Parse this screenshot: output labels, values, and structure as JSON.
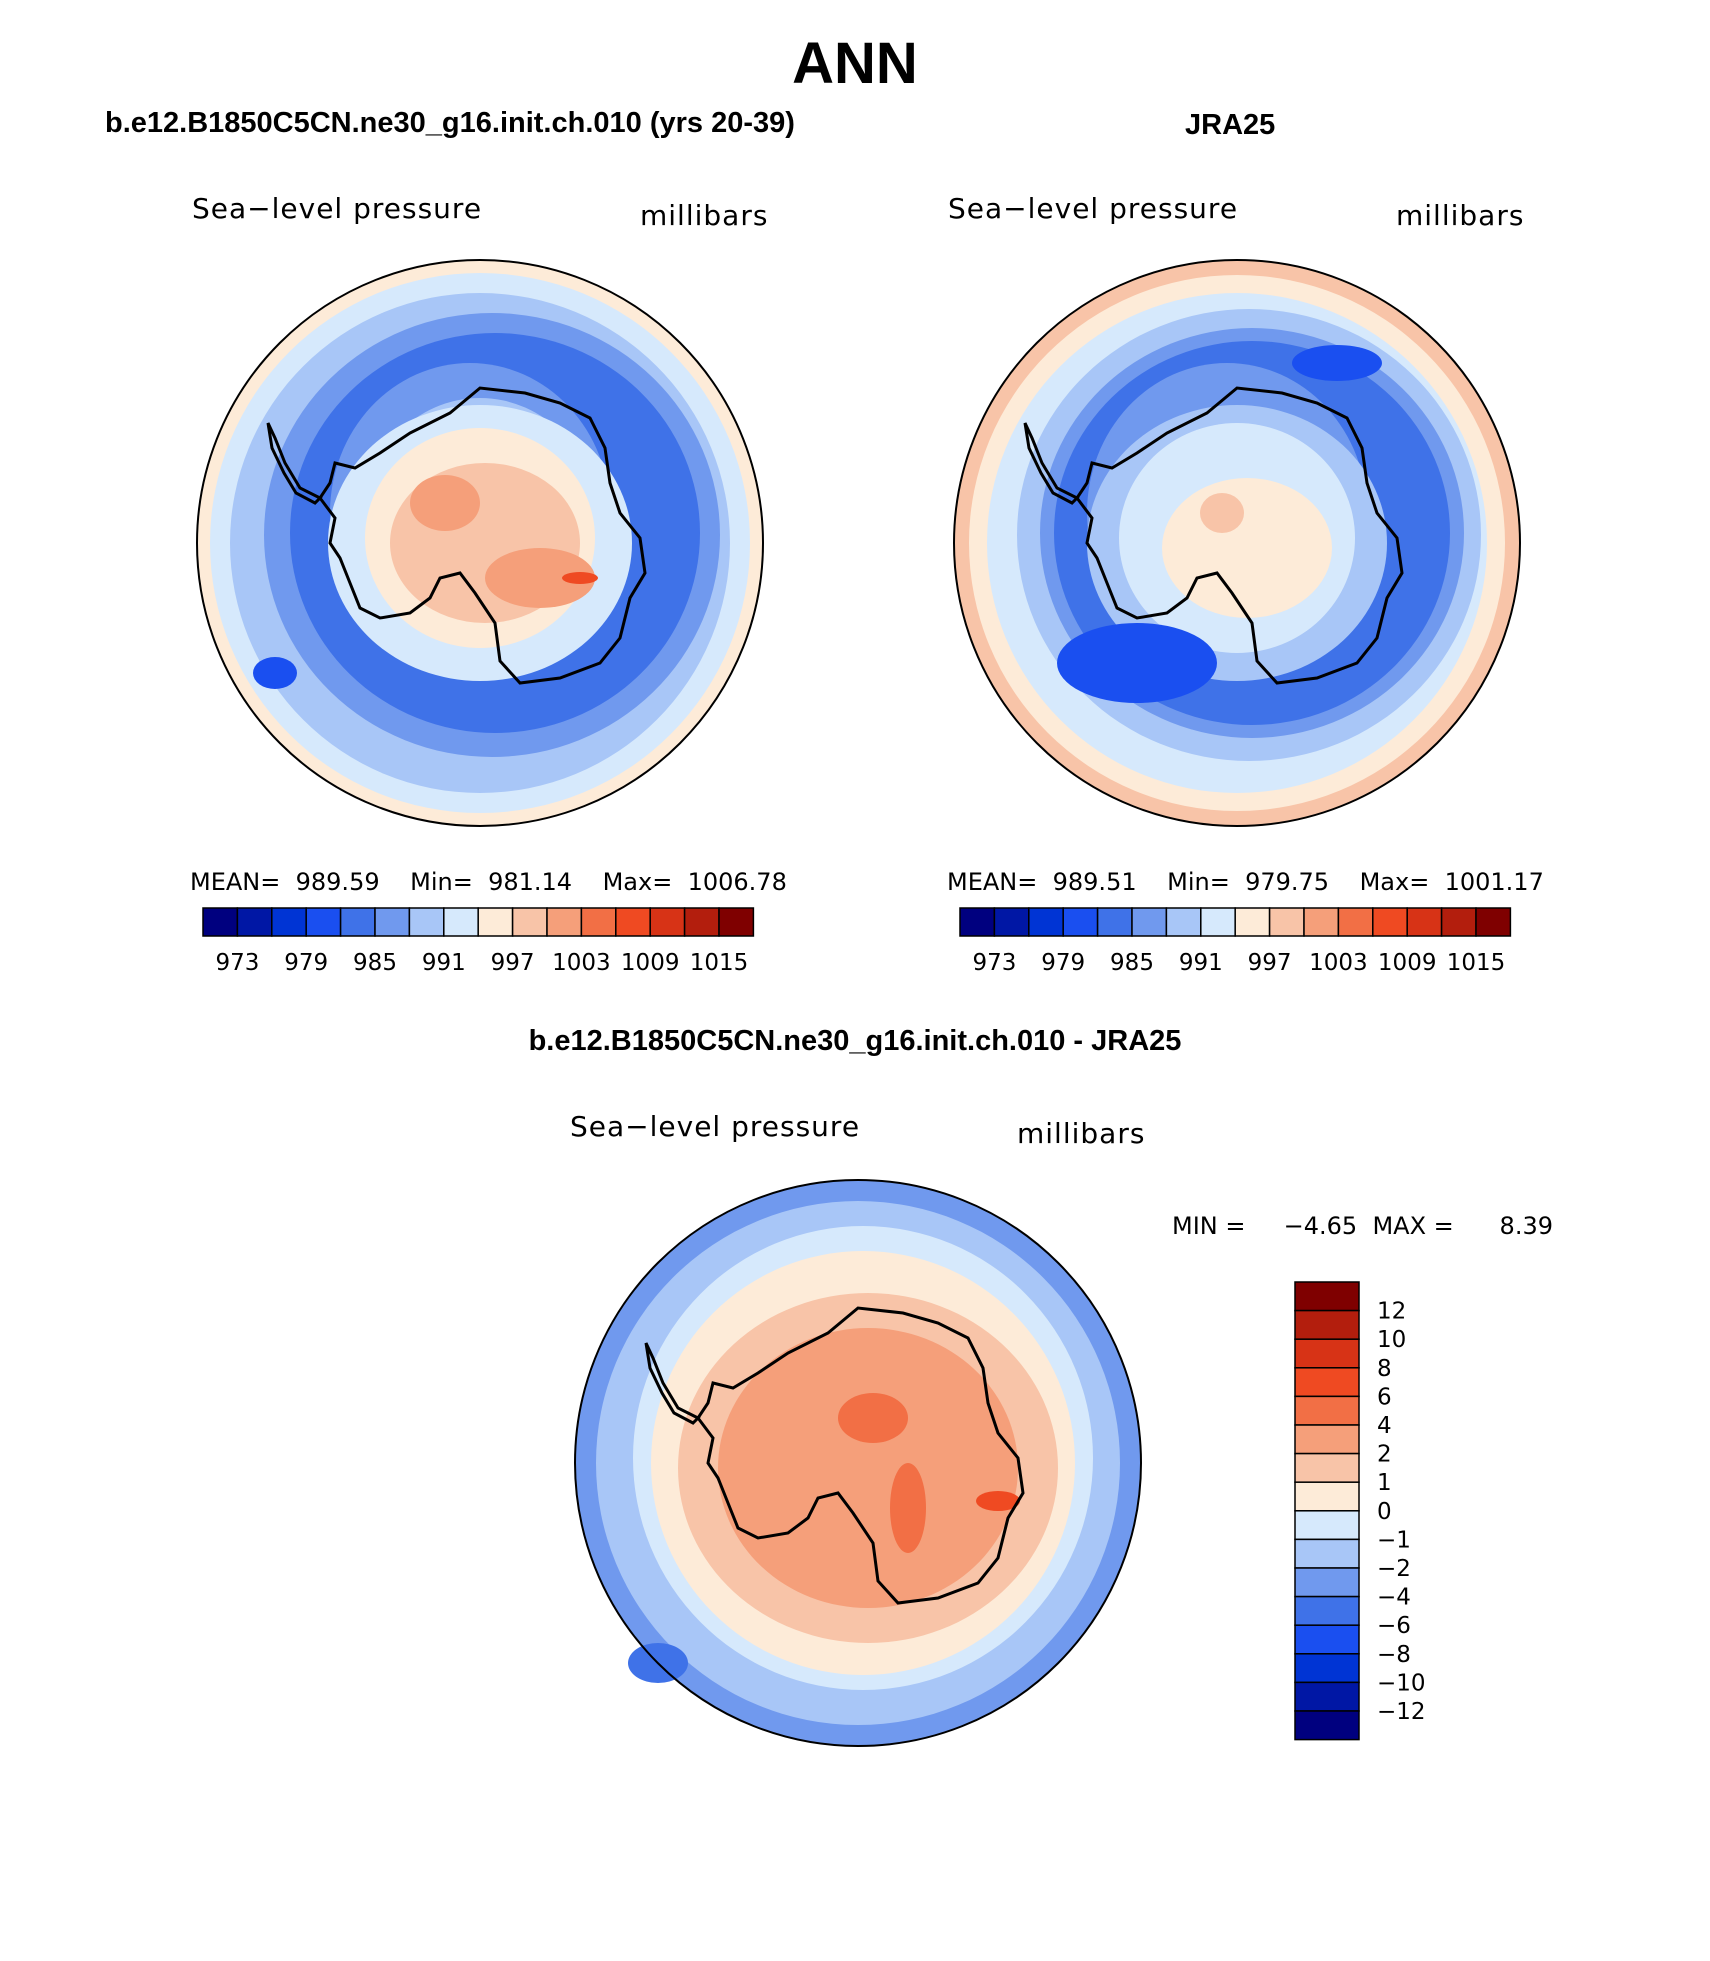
{
  "figure": {
    "title": "ANN"
  },
  "panels": [
    {
      "id": "model",
      "header": "b.e12.B1850C5CN.ne30_g16.init.ch.010 (yrs 20-39)",
      "left_label": "Sea−level pressure",
      "right_label": "millibars",
      "stats": {
        "mean_label": "MEAN=",
        "mean": "989.59",
        "min_label": "Min=",
        "min": "981.14",
        "max_label": "Max=",
        "max": "1006.78"
      }
    },
    {
      "id": "obs",
      "header": "JRA25",
      "left_label": "Sea−level pressure",
      "right_label": "millibars",
      "stats": {
        "mean_label": "MEAN=",
        "mean": "989.51",
        "min_label": "Min=",
        "min": "979.75",
        "max_label": "Max=",
        "max": "1001.17"
      }
    },
    {
      "id": "diff",
      "header": "b.e12.B1850C5CN.ne30_g16.init.ch.010 - JRA25",
      "left_label": "Sea−level pressure",
      "right_label": "millibars",
      "stats": {
        "min_label": "MIN =",
        "min": "−4.65",
        "max_label": "MAX =",
        "max": "8.39"
      }
    }
  ],
  "colorbars": {
    "absolute": {
      "colors": [
        "#00007f",
        "#0017a5",
        "#0034d4",
        "#1a4ff0",
        "#3f72e8",
        "#7099ee",
        "#a8c6f7",
        "#d6e9fc",
        "#fdebd8",
        "#f8c4a8",
        "#f59f7a",
        "#f26f45",
        "#ef4a22",
        "#d73316",
        "#b31e0d",
        "#7f0000"
      ],
      "labels": [
        "973",
        "979",
        "985",
        "991",
        "997",
        "1003",
        "1009",
        "1015"
      ]
    },
    "difference": {
      "colors": [
        "#7f0000",
        "#b31e0d",
        "#d73316",
        "#ef4a22",
        "#f26f45",
        "#f59f7a",
        "#f8c4a8",
        "#fdebd8",
        "#d6e9fc",
        "#a8c6f7",
        "#7099ee",
        "#3f72e8",
        "#1a4ff0",
        "#0034d4",
        "#0017a5",
        "#00007f"
      ],
      "labels": [
        "12",
        "10",
        "8",
        "6",
        "4",
        "2",
        "1",
        "0",
        "−1",
        "−2",
        "−4",
        "−6",
        "−8",
        "−10",
        "−12"
      ]
    }
  }
}
